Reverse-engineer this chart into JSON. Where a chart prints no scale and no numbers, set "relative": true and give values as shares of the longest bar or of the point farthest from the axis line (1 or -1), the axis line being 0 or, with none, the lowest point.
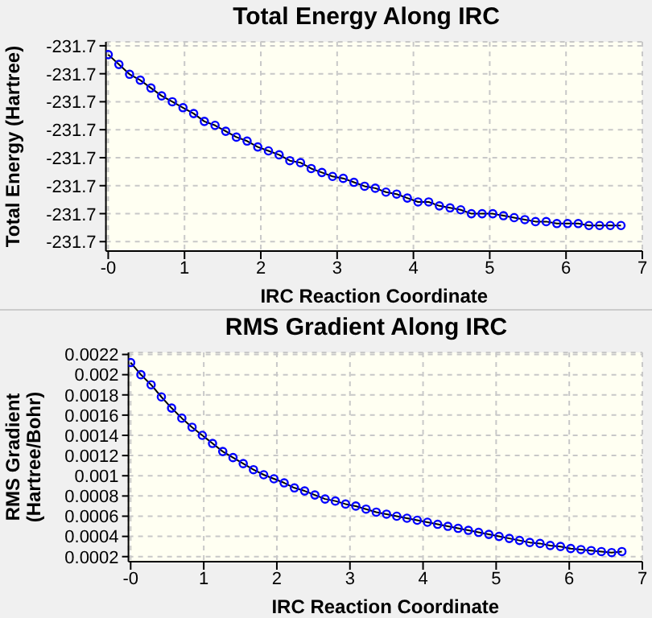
{
  "chart_data": [
    {
      "type": "line",
      "title": "Total Energy Along IRC",
      "xlabel": "IRC Reaction Coordinate",
      "ylabel": "Total Energy (Hartree)",
      "relative": true,
      "grid": true,
      "legend": false,
      "marker": "circle",
      "line_style": "solid",
      "x": [
        0,
        0.14,
        0.28,
        0.42,
        0.56,
        0.7,
        0.84,
        0.98,
        1.12,
        1.26,
        1.4,
        1.54,
        1.68,
        1.82,
        1.96,
        2.1,
        2.24,
        2.38,
        2.52,
        2.66,
        2.8,
        2.94,
        3.08,
        3.22,
        3.36,
        3.5,
        3.64,
        3.78,
        3.92,
        4.06,
        4.2,
        4.34,
        4.48,
        4.62,
        4.76,
        4.9,
        5.04,
        5.18,
        5.32,
        5.46,
        5.6,
        5.74,
        5.88,
        6.02,
        6.16,
        6.3,
        6.44,
        6.58,
        6.72
      ],
      "xlim": [
        -0.03,
        7
      ],
      "xticks": [
        {
          "value": 0,
          "label": "-0"
        },
        1,
        2,
        3,
        4,
        5,
        6,
        7
      ],
      "annotations": [
        "-231.7",
        "-231.7",
        "-231.7",
        "-231.7",
        "-231.7",
        "-231.7",
        "-231.7",
        "-231.7"
      ],
      "series": [
        {
          "color": "#0000ff",
          "values": [
            1.0,
            0.95,
            0.9,
            0.87,
            0.83,
            0.79,
            0.76,
            0.73,
            0.7,
            0.66,
            0.64,
            0.61,
            0.58,
            0.56,
            0.53,
            0.51,
            0.49,
            0.46,
            0.45,
            0.42,
            0.4,
            0.38,
            0.37,
            0.35,
            0.33,
            0.32,
            0.3,
            0.29,
            0.27,
            0.25,
            0.25,
            0.23,
            0.22,
            0.21,
            0.19,
            0.19,
            0.19,
            0.18,
            0.17,
            0.16,
            0.15,
            0.15,
            0.14,
            0.14,
            0.14,
            0.13,
            0.13,
            0.13,
            0.13
          ]
        }
      ]
    },
    {
      "type": "line",
      "title": "RMS Gradient Along IRC",
      "xlabel": "IRC Reaction Coordinate",
      "ylabel": "RMS Gradient\n(Hartree/Bohr)",
      "grid": true,
      "legend": false,
      "marker": "circle",
      "line_style": "solid",
      "x": [
        0,
        0.14,
        0.28,
        0.42,
        0.56,
        0.7,
        0.84,
        0.98,
        1.12,
        1.26,
        1.4,
        1.54,
        1.68,
        1.82,
        1.96,
        2.1,
        2.24,
        2.38,
        2.52,
        2.66,
        2.8,
        2.94,
        3.08,
        3.22,
        3.36,
        3.5,
        3.64,
        3.78,
        3.92,
        4.06,
        4.2,
        4.34,
        4.48,
        4.62,
        4.76,
        4.9,
        5.04,
        5.18,
        5.32,
        5.46,
        5.6,
        5.74,
        5.88,
        6.02,
        6.16,
        6.3,
        6.44,
        6.58,
        6.72
      ],
      "xlim": [
        -0.03,
        7
      ],
      "xticks": [
        {
          "value": 0,
          "label": "-0"
        },
        1,
        2,
        3,
        4,
        5,
        6,
        7
      ],
      "ylim": [
        0.00015,
        0.00222
      ],
      "yticks": [
        0.0002,
        0.0004,
        0.0006,
        0.0008,
        0.001,
        0.0012,
        0.0014,
        0.0016,
        0.0018,
        0.002,
        0.0022
      ],
      "series": [
        {
          "color": "#0000ff",
          "values": [
            0.00212,
            0.002,
            0.0019,
            0.00178,
            0.00167,
            0.00157,
            0.00148,
            0.0014,
            0.00132,
            0.00124,
            0.00118,
            0.00112,
            0.00106,
            0.00101,
            0.00097,
            0.00093,
            0.00088,
            0.00085,
            0.00081,
            0.00077,
            0.00075,
            0.00072,
            0.0007,
            0.00067,
            0.00064,
            0.00062,
            0.0006,
            0.00058,
            0.00056,
            0.00054,
            0.00052,
            0.0005,
            0.00048,
            0.00046,
            0.00044,
            0.00042,
            0.0004,
            0.00038,
            0.00036,
            0.00034,
            0.00033,
            0.00031,
            0.0003,
            0.00028,
            0.00027,
            0.00026,
            0.00025,
            0.00024,
            0.00025
          ]
        }
      ]
    }
  ]
}
